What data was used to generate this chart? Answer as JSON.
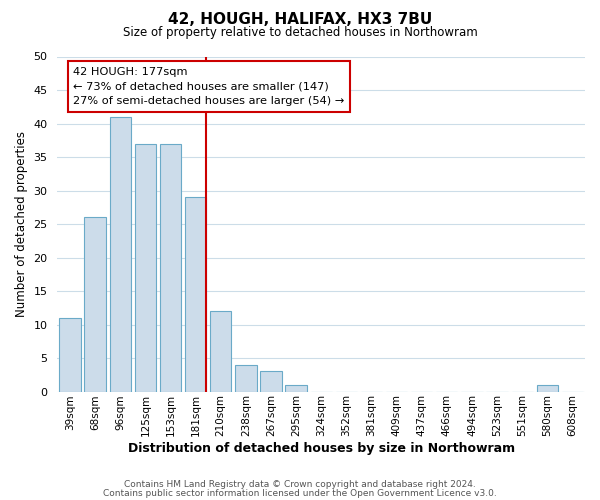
{
  "title": "42, HOUGH, HALIFAX, HX3 7BU",
  "subtitle": "Size of property relative to detached houses in Northowram",
  "xlabel": "Distribution of detached houses by size in Northowram",
  "ylabel": "Number of detached properties",
  "bar_color": "#ccdcea",
  "bar_edge_color": "#6aaac8",
  "bins": [
    "39sqm",
    "68sqm",
    "96sqm",
    "125sqm",
    "153sqm",
    "181sqm",
    "210sqm",
    "238sqm",
    "267sqm",
    "295sqm",
    "324sqm",
    "352sqm",
    "381sqm",
    "409sqm",
    "437sqm",
    "466sqm",
    "494sqm",
    "523sqm",
    "551sqm",
    "580sqm",
    "608sqm"
  ],
  "counts": [
    11,
    26,
    41,
    37,
    37,
    29,
    12,
    4,
    3,
    1,
    0,
    0,
    0,
    0,
    0,
    0,
    0,
    0,
    0,
    1,
    0
  ],
  "ylim": [
    0,
    50
  ],
  "vline_bin_index": 5,
  "vline_color": "#cc0000",
  "ann_line1": "42 HOUGH: 177sqm",
  "ann_line2": "← 73% of detached houses are smaller (147)",
  "ann_line3": "27% of semi-detached houses are larger (54) →",
  "annotation_box_color": "#ffffff",
  "annotation_box_edge": "#cc0000",
  "footer1": "Contains HM Land Registry data © Crown copyright and database right 2024.",
  "footer2": "Contains public sector information licensed under the Open Government Licence v3.0.",
  "background_color": "#ffffff",
  "grid_color": "#ccdde8"
}
